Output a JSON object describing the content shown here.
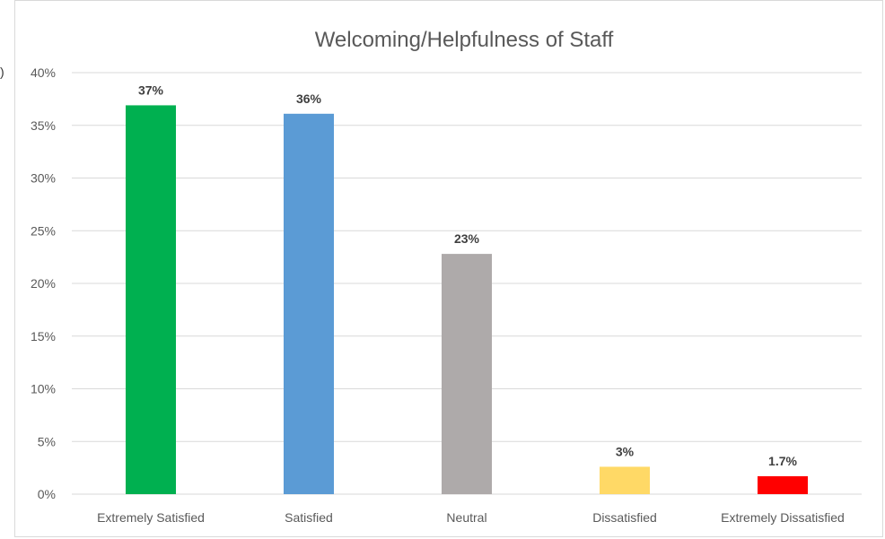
{
  "chart_data": {
    "type": "bar",
    "title": "Welcoming/Helpfulness of Staff",
    "categories": [
      "Extremely Satisfied",
      "Satisfied",
      "Neutral",
      "Dissatisfied",
      "Extremely Dissatisfied"
    ],
    "values": [
      37,
      36,
      23,
      3,
      1.7
    ],
    "data_labels": [
      "37%",
      "36%",
      "23%",
      "3%",
      "1.7%"
    ],
    "bar_heights": [
      36.9,
      36.1,
      22.8,
      2.6,
      1.7
    ],
    "colors": [
      "#00b050",
      "#5b9bd5",
      "#aeaaaa",
      "#ffd966",
      "#ff0000"
    ],
    "ylim": [
      0,
      40
    ],
    "yticks": [
      "0%",
      "5%",
      "10%",
      "15%",
      "20%",
      "25%",
      "30%",
      "35%",
      "40%"
    ],
    "xlabel": "",
    "ylabel": "",
    "grid": true,
    "legend": "none"
  },
  "fragment": ")"
}
